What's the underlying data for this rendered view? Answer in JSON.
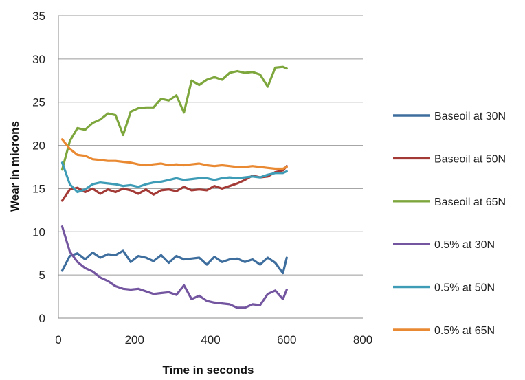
{
  "chart_data": {
    "type": "line",
    "title": "",
    "xlabel": "Time in seconds",
    "ylabel": "Wear in microns",
    "xlim": [
      0,
      800
    ],
    "ylim": [
      0,
      35
    ],
    "xticks": [
      0,
      200,
      400,
      600,
      800
    ],
    "yticks": [
      0,
      5,
      10,
      15,
      20,
      25,
      30,
      35
    ],
    "xtick_labels": [
      "0",
      "200",
      "400",
      "600",
      "800"
    ],
    "ytick_labels": [
      "0",
      "5",
      "10",
      "15",
      "20",
      "25",
      "30",
      "35"
    ],
    "grid": "horizontal",
    "legend_position": "right",
    "x": [
      10,
      30,
      50,
      70,
      90,
      110,
      130,
      150,
      170,
      190,
      210,
      230,
      250,
      270,
      290,
      310,
      330,
      350,
      370,
      390,
      410,
      430,
      450,
      470,
      490,
      510,
      530,
      550,
      570,
      590,
      600
    ],
    "series": [
      {
        "name": "Baseoil at 30N",
        "color": "#3E6E9E",
        "values": [
          5.5,
          7.2,
          7.5,
          6.8,
          7.6,
          7.0,
          7.4,
          7.3,
          7.8,
          6.5,
          7.2,
          7.0,
          6.6,
          7.3,
          6.4,
          7.2,
          6.8,
          6.9,
          7.0,
          6.2,
          7.1,
          6.5,
          6.8,
          6.9,
          6.5,
          6.8,
          6.2,
          7.0,
          6.4,
          5.2,
          7.0
        ]
      },
      {
        "name": "Baseoil at 50N",
        "color": "#A33A36",
        "values": [
          13.6,
          14.9,
          15.1,
          14.6,
          15.0,
          14.4,
          14.9,
          14.6,
          15.0,
          14.8,
          14.4,
          14.9,
          14.3,
          14.8,
          14.9,
          14.7,
          15.2,
          14.8,
          14.9,
          14.8,
          15.3,
          15.0,
          15.3,
          15.6,
          16.0,
          16.5,
          16.3,
          16.4,
          16.9,
          17.1,
          17.6
        ]
      },
      {
        "name": "Baseoil at 65N",
        "color": "#7DA63C",
        "values": [
          17.2,
          20.5,
          22.0,
          21.8,
          22.6,
          23.0,
          23.7,
          23.5,
          21.2,
          23.9,
          24.3,
          24.4,
          24.4,
          25.4,
          25.2,
          25.8,
          23.8,
          27.5,
          27.0,
          27.6,
          27.9,
          27.6,
          28.4,
          28.6,
          28.4,
          28.5,
          28.2,
          26.8,
          29.0,
          29.1,
          28.9
        ]
      },
      {
        "name": "0.5% at 30N",
        "color": "#7355A0",
        "values": [
          10.6,
          7.7,
          6.5,
          5.8,
          5.4,
          4.7,
          4.3,
          3.7,
          3.4,
          3.3,
          3.4,
          3.1,
          2.8,
          2.9,
          3.0,
          2.7,
          3.8,
          2.2,
          2.6,
          2.0,
          1.8,
          1.7,
          1.6,
          1.2,
          1.2,
          1.6,
          1.5,
          2.8,
          3.2,
          2.2,
          3.3
        ]
      },
      {
        "name": "0.5% at 50N",
        "color": "#3E9CB6",
        "values": [
          18.0,
          15.5,
          14.6,
          14.9,
          15.5,
          15.7,
          15.6,
          15.5,
          15.3,
          15.4,
          15.2,
          15.5,
          15.7,
          15.8,
          16.0,
          16.2,
          16.0,
          16.1,
          16.2,
          16.2,
          16.0,
          16.2,
          16.3,
          16.2,
          16.3,
          16.4,
          16.3,
          16.6,
          16.8,
          16.8,
          17.0
        ]
      },
      {
        "name": "0.5% at 65N",
        "color": "#E98A33",
        "values": [
          20.7,
          19.6,
          18.9,
          18.8,
          18.4,
          18.3,
          18.2,
          18.2,
          18.1,
          18.0,
          17.8,
          17.7,
          17.8,
          17.9,
          17.7,
          17.8,
          17.7,
          17.8,
          17.9,
          17.7,
          17.6,
          17.7,
          17.6,
          17.5,
          17.5,
          17.6,
          17.5,
          17.4,
          17.3,
          17.3,
          17.5
        ]
      }
    ]
  }
}
